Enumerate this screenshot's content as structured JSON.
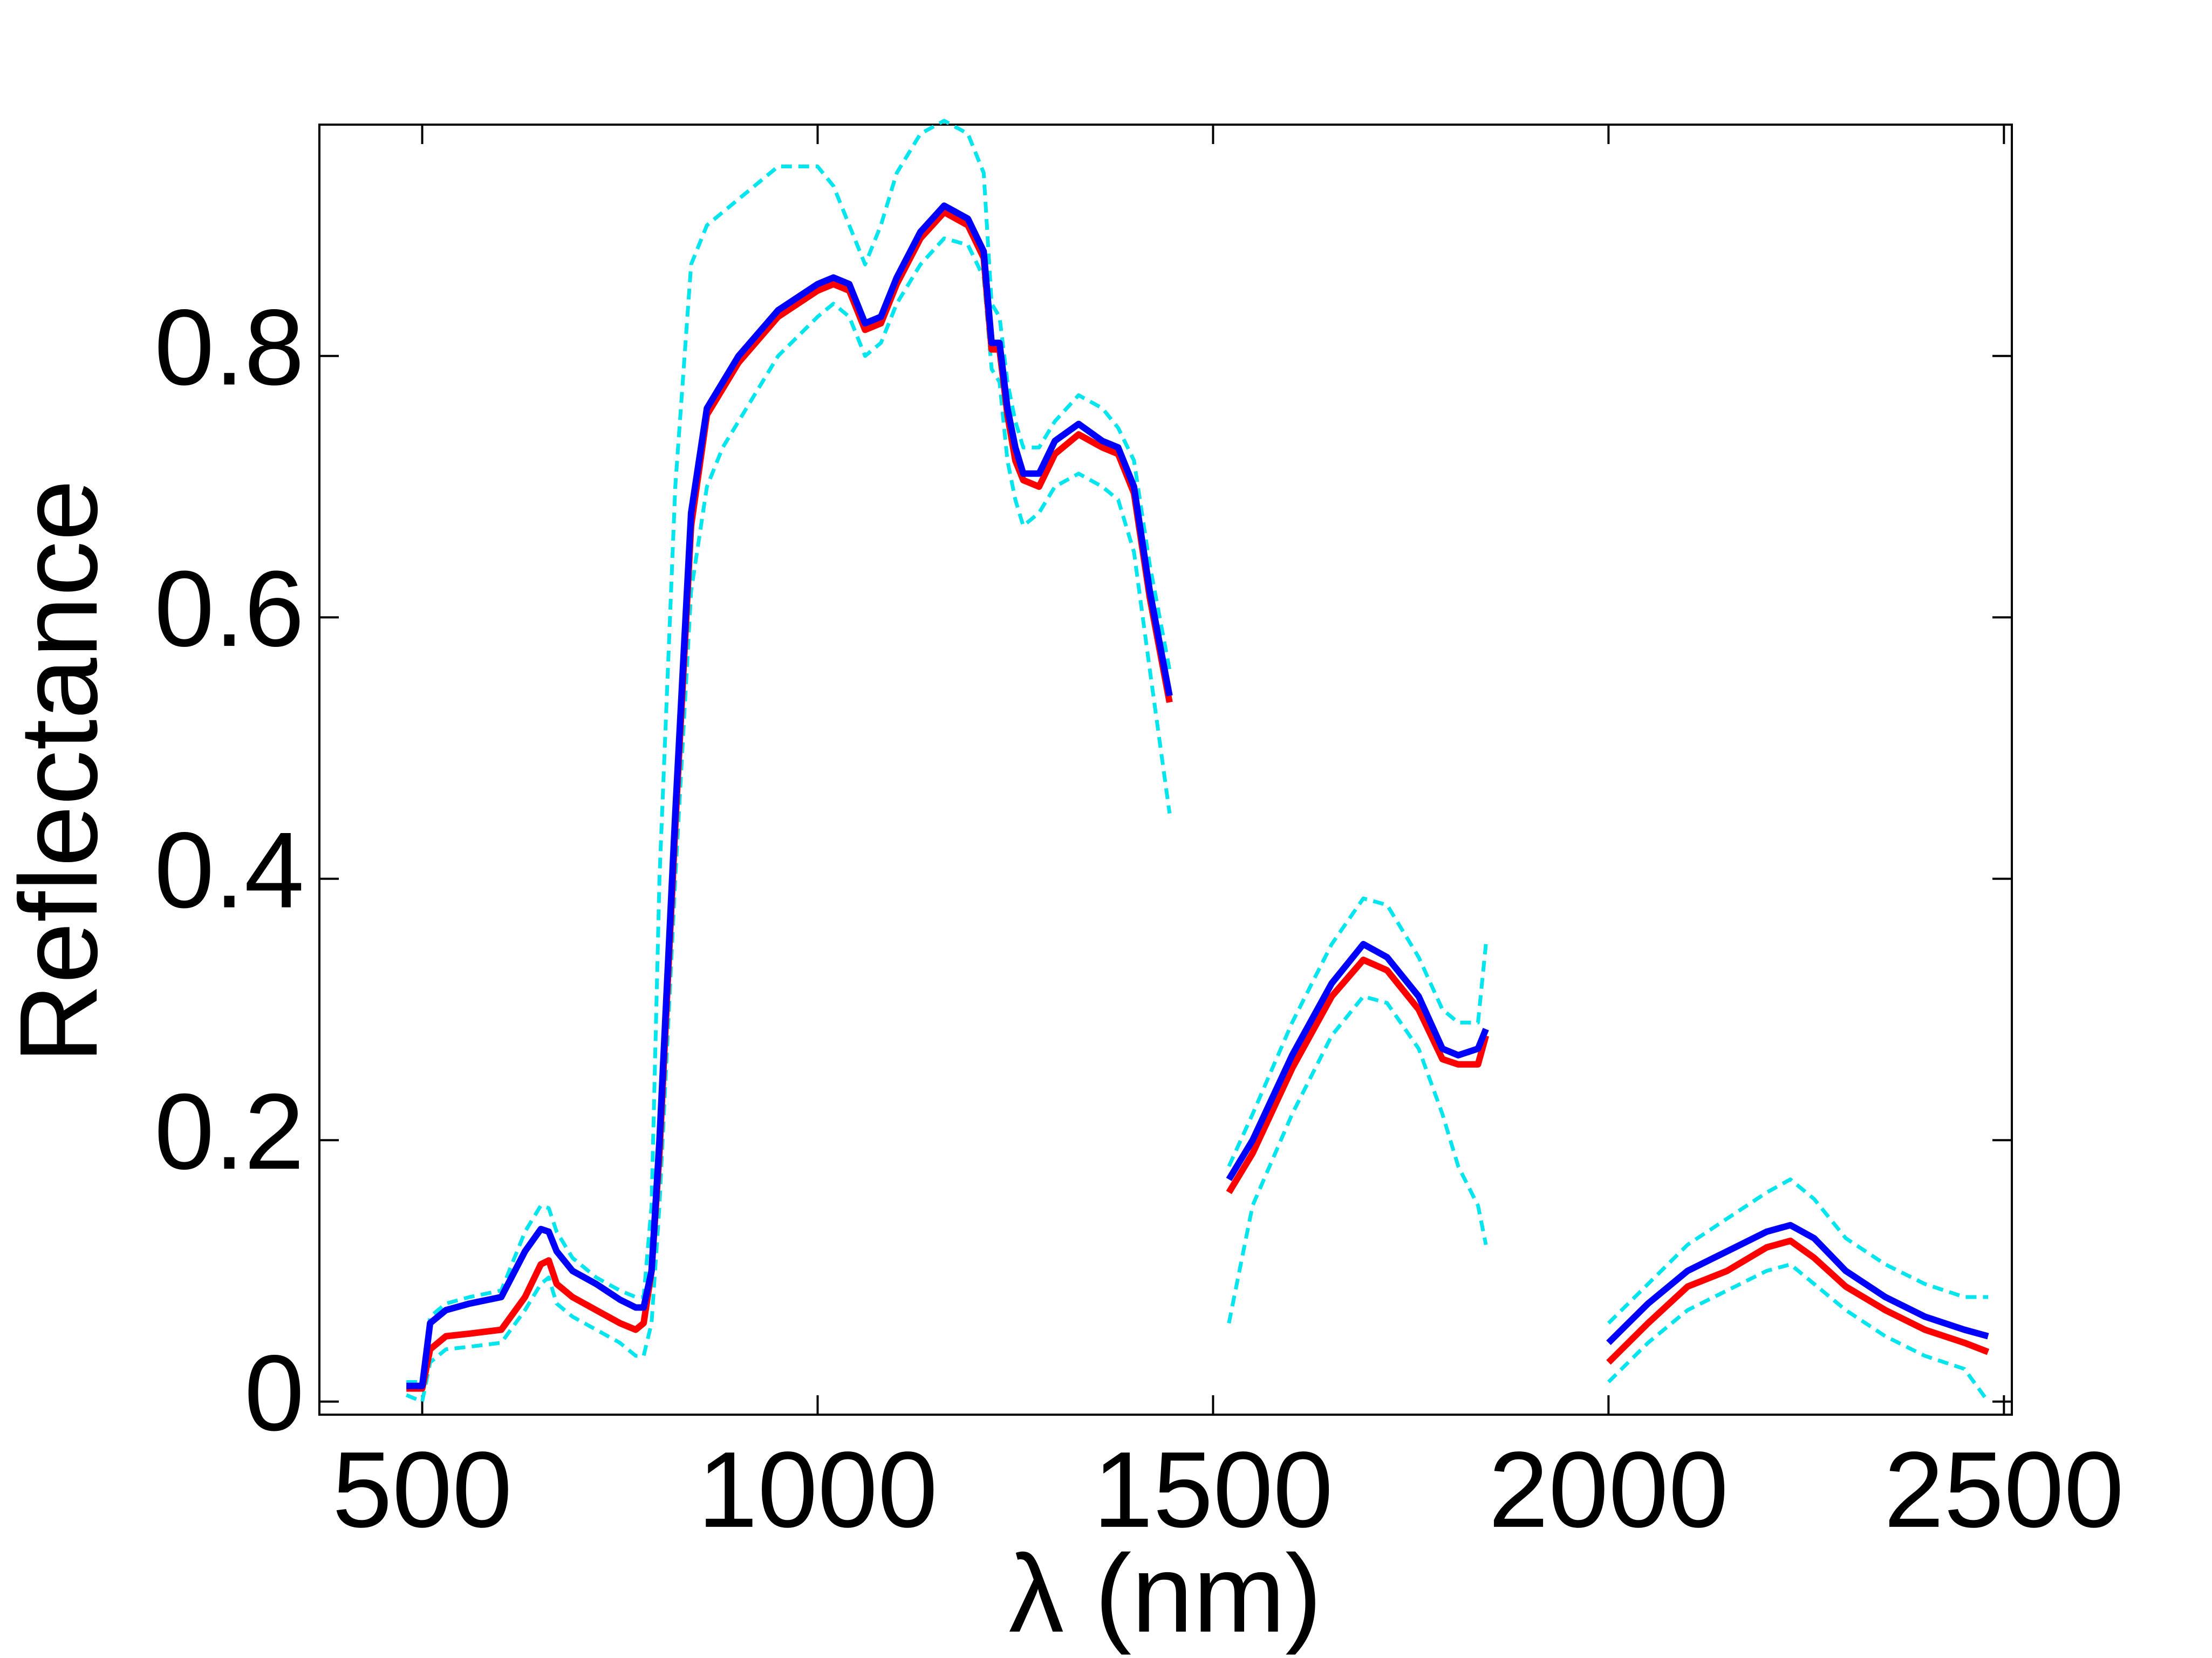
{
  "chart_data": {
    "type": "line",
    "xlabel": "λ (nm)",
    "ylabel": "Reflectance",
    "x": [
      480,
      500,
      510,
      530,
      560,
      600,
      630,
      650,
      660,
      670,
      690,
      720,
      750,
      770,
      780,
      790,
      800,
      820,
      840,
      860,
      880,
      900,
      950,
      1000,
      1020,
      1040,
      1060,
      1080,
      1100,
      1130,
      1160,
      1190,
      1210,
      1220,
      1230,
      1240,
      1250,
      1260,
      1280,
      1300,
      1330,
      1360,
      1380,
      1400,
      1420,
      1445,
      1480,
      1520,
      1550,
      1600,
      1650,
      1690,
      1720,
      1760,
      1790,
      1810,
      1835,
      1845,
      1920,
      2000,
      2050,
      2100,
      2150,
      2200,
      2230,
      2260,
      2300,
      2350,
      2400,
      2450,
      2480
    ],
    "series": [
      {
        "color": "#00e5ee",
        "dashed": true,
        "values": [
          0.015,
          0.015,
          0.065,
          0.075,
          0.08,
          0.085,
          0.13,
          0.15,
          0.148,
          0.13,
          0.11,
          0.095,
          0.085,
          0.08,
          0.08,
          0.15,
          0.4,
          0.7,
          0.87,
          0.9,
          0.91,
          0.92,
          0.945,
          0.945,
          0.93,
          0.9,
          0.87,
          0.9,
          0.94,
          0.97,
          0.98,
          0.97,
          0.94,
          0.84,
          0.83,
          0.78,
          0.75,
          0.73,
          0.73,
          0.75,
          0.77,
          0.76,
          0.745,
          0.72,
          0.64,
          0.56,
          null,
          0.18,
          0.22,
          0.29,
          0.35,
          0.385,
          0.38,
          0.34,
          0.3,
          0.29,
          0.29,
          0.35,
          null,
          0.06,
          0.09,
          0.12,
          0.14,
          0.16,
          0.17,
          0.155,
          0.125,
          0.105,
          0.09,
          0.08,
          0.08
        ]
      },
      {
        "color": "#00e5ee",
        "dashed": true,
        "values": [
          0.005,
          0.0,
          0.03,
          0.04,
          0.042,
          0.045,
          0.07,
          0.09,
          0.095,
          0.075,
          0.065,
          0.055,
          0.045,
          0.035,
          0.035,
          0.06,
          0.15,
          0.4,
          0.62,
          0.7,
          0.73,
          0.75,
          0.8,
          0.83,
          0.84,
          0.83,
          0.8,
          0.81,
          0.84,
          0.87,
          0.89,
          0.885,
          0.86,
          0.79,
          0.78,
          0.72,
          0.69,
          0.67,
          0.68,
          0.7,
          0.71,
          0.7,
          0.69,
          0.65,
          0.56,
          0.45,
          null,
          0.06,
          0.15,
          0.22,
          0.28,
          0.31,
          0.305,
          0.27,
          0.22,
          0.18,
          0.15,
          0.12,
          null,
          0.015,
          0.045,
          0.07,
          0.085,
          0.1,
          0.105,
          0.09,
          0.07,
          0.05,
          0.035,
          0.025,
          0.0
        ]
      },
      {
        "color": "#ff0000",
        "dashed": false,
        "values": [
          0.01,
          0.01,
          0.04,
          0.05,
          0.052,
          0.055,
          0.08,
          0.105,
          0.108,
          0.09,
          0.08,
          0.07,
          0.06,
          0.055,
          0.06,
          0.1,
          0.19,
          0.44,
          0.67,
          0.755,
          0.775,
          0.795,
          0.83,
          0.85,
          0.855,
          0.85,
          0.82,
          0.825,
          0.855,
          0.89,
          0.91,
          0.9,
          0.875,
          0.805,
          0.805,
          0.755,
          0.72,
          0.705,
          0.7,
          0.725,
          0.74,
          0.73,
          0.725,
          0.695,
          0.615,
          0.535,
          null,
          0.16,
          0.19,
          0.255,
          0.31,
          0.338,
          0.33,
          0.3,
          0.262,
          0.258,
          0.258,
          0.28,
          null,
          0.03,
          0.06,
          0.088,
          0.1,
          0.118,
          0.123,
          0.11,
          0.088,
          0.07,
          0.055,
          0.045,
          0.038
        ]
      },
      {
        "color": "#0000ff",
        "dashed": false,
        "values": [
          0.012,
          0.012,
          0.06,
          0.07,
          0.075,
          0.08,
          0.115,
          0.132,
          0.13,
          0.115,
          0.1,
          0.09,
          0.078,
          0.072,
          0.072,
          0.1,
          0.2,
          0.45,
          0.68,
          0.76,
          0.78,
          0.8,
          0.835,
          0.855,
          0.86,
          0.855,
          0.825,
          0.83,
          0.86,
          0.895,
          0.915,
          0.905,
          0.88,
          0.81,
          0.81,
          0.76,
          0.73,
          0.71,
          0.71,
          0.735,
          0.748,
          0.735,
          0.73,
          0.7,
          0.62,
          0.54,
          null,
          0.17,
          0.2,
          0.265,
          0.32,
          0.35,
          0.34,
          0.31,
          0.27,
          0.265,
          0.27,
          0.285,
          null,
          0.045,
          0.075,
          0.1,
          0.115,
          0.13,
          0.135,
          0.125,
          0.1,
          0.08,
          0.065,
          0.055,
          0.05
        ]
      }
    ],
    "xlim": [
      370,
      2510
    ],
    "ylim": [
      -0.01,
      0.977
    ],
    "xticks": [
      500,
      1000,
      1500,
      2000,
      2500
    ],
    "yticks": [
      0,
      0.2,
      0.4,
      0.6,
      0.8
    ],
    "grid": false
  }
}
